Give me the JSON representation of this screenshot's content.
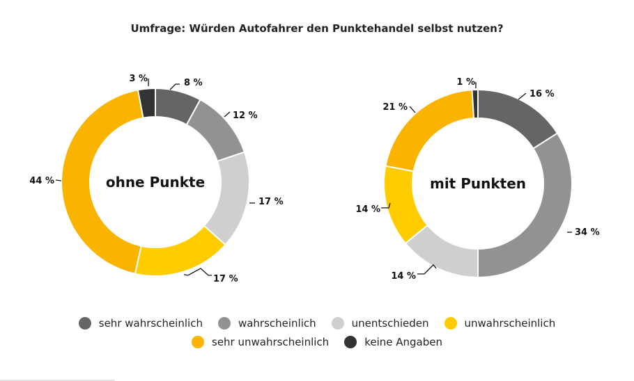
{
  "title": "Umfrage: Würden Autofahrer den Punktehandel selbst nutzen?",
  "chart_data": [
    {
      "type": "donut",
      "center_label": "ohne Punkte",
      "categories": [
        "sehr wahrscheinlich",
        "wahrscheinlich",
        "unentschieden",
        "unwahrscheinlich",
        "sehr unwahrscheinlich",
        "keine Angaben"
      ],
      "values": [
        8,
        12,
        17,
        17,
        44,
        3
      ],
      "value_labels": [
        "8 %",
        "12 %",
        "17 %",
        "17 %",
        "44 %",
        "3 %"
      ],
      "colors": [
        "#656565",
        "#929292",
        "#cfcfcf",
        "#ffcc00",
        "#fab400",
        "#333333"
      ]
    },
    {
      "type": "donut",
      "center_label": "mit Punkten",
      "categories": [
        "sehr wahrscheinlich",
        "wahrscheinlich",
        "unentschieden",
        "unwahrscheinlich",
        "sehr unwahrscheinlich",
        "keine Angaben"
      ],
      "values": [
        16,
        34,
        14,
        14,
        21,
        1
      ],
      "value_labels": [
        "16 %",
        "34 %",
        "14 %",
        "14 %",
        "21 %",
        "1 %"
      ],
      "colors": [
        "#656565",
        "#929292",
        "#cfcfcf",
        "#ffcc00",
        "#fab400",
        "#333333"
      ]
    }
  ],
  "legend": {
    "placement": "bottom",
    "items": [
      {
        "label": "sehr wahrscheinlich",
        "color": "#656565"
      },
      {
        "label": "wahrscheinlich",
        "color": "#929292"
      },
      {
        "label": "unentschieden",
        "color": "#cfcfcf"
      },
      {
        "label": "unwahrscheinlich",
        "color": "#ffcc00"
      },
      {
        "label": "sehr unwahrscheinlich",
        "color": "#fab400"
      },
      {
        "label": "keine Angaben",
        "color": "#333333"
      }
    ]
  }
}
